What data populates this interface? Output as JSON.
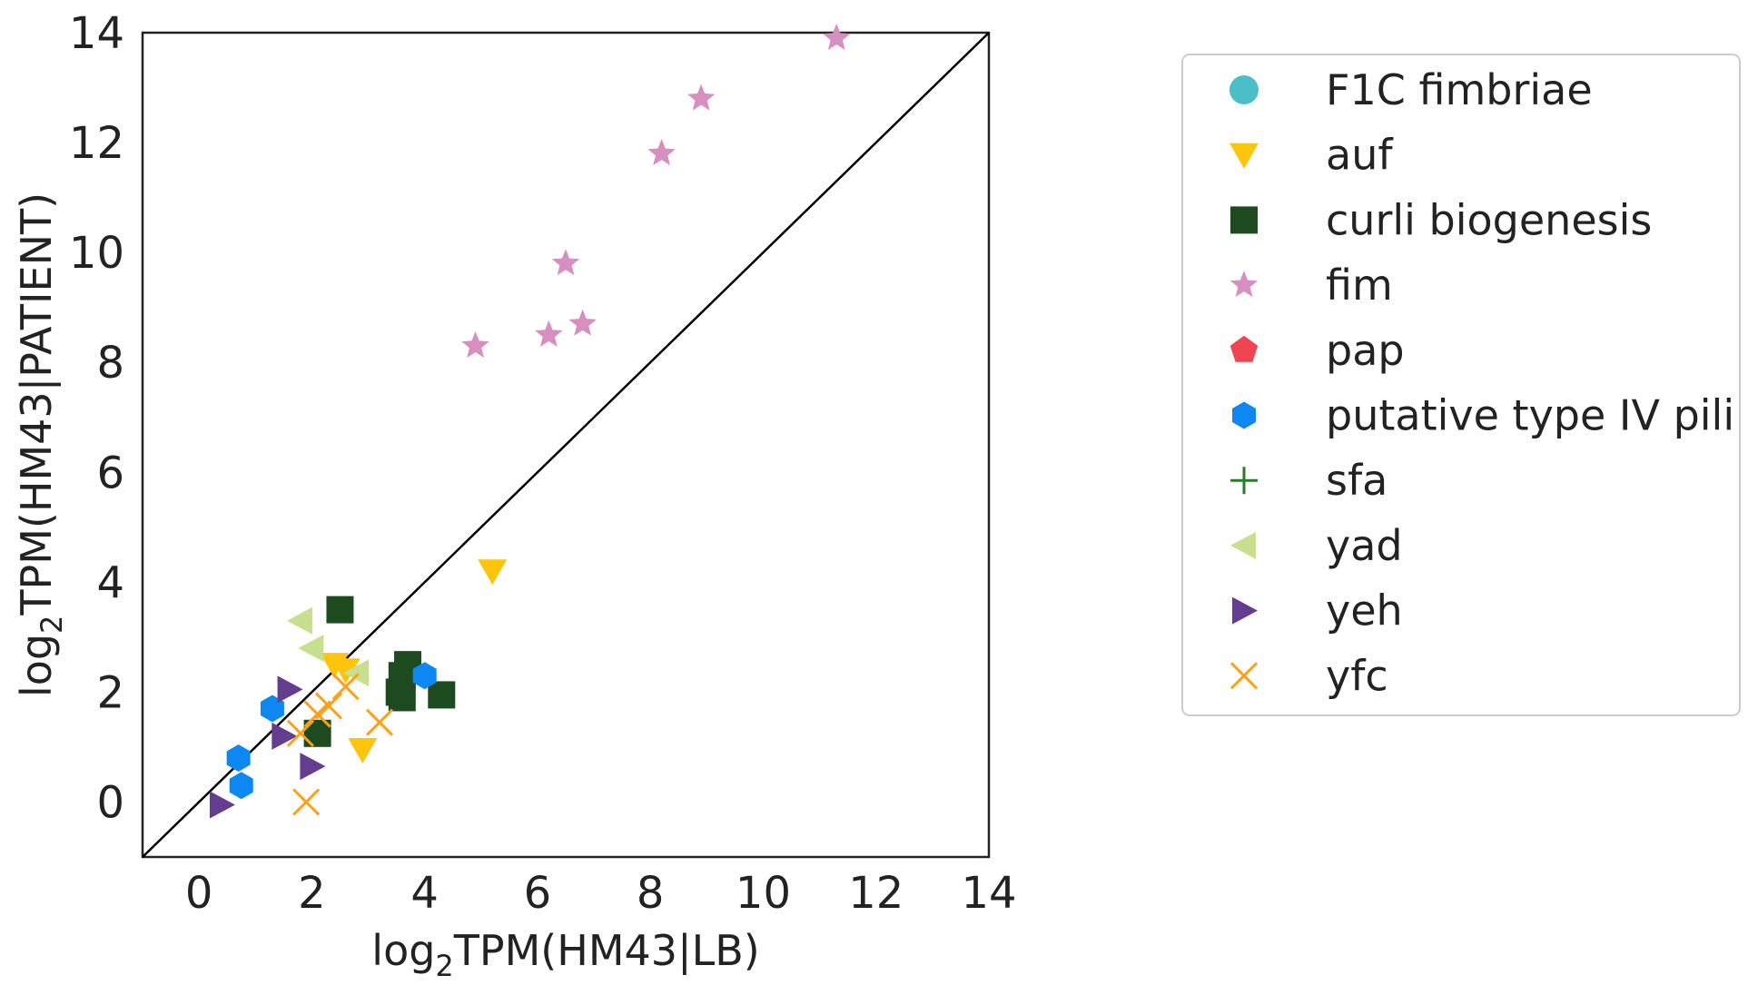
{
  "chart_data": {
    "type": "scatter",
    "xlabel": {
      "prefix": "log",
      "sub": "2",
      "rest": "TPM(HM43|LB)"
    },
    "ylabel": {
      "prefix": "log",
      "sub": "2",
      "rest": "TPM(HM43|PATIENT)"
    },
    "xlim": [
      -1,
      14
    ],
    "ylim": [
      -1,
      14
    ],
    "xticks": [
      0,
      2,
      4,
      6,
      8,
      10,
      12,
      14
    ],
    "yticks": [
      0,
      2,
      4,
      6,
      8,
      10,
      12,
      14
    ],
    "grid": false,
    "diagonal_line": {
      "from": [
        -1,
        -1
      ],
      "to": [
        14,
        14
      ],
      "color": "#000000"
    },
    "legend_position": "outside-right",
    "series": [
      {
        "name": "F1C fimbriae",
        "marker": "circle",
        "color": "#4bbfc8",
        "points": []
      },
      {
        "name": "auf",
        "marker": "triangle-down",
        "color": "#ffc40c",
        "points": [
          [
            5.2,
            4.2
          ],
          [
            2.4,
            2.5
          ],
          [
            2.6,
            2.4
          ],
          [
            2.9,
            0.95
          ]
        ]
      },
      {
        "name": "curli biogenesis",
        "marker": "square",
        "color": "#1e4a20",
        "points": [
          [
            2.5,
            3.5
          ],
          [
            3.7,
            2.5
          ],
          [
            3.6,
            2.3
          ],
          [
            4.3,
            1.95
          ],
          [
            3.6,
            1.9
          ],
          [
            3.55,
            2.0
          ],
          [
            2.1,
            1.25
          ]
        ]
      },
      {
        "name": "fim",
        "marker": "star",
        "color": "#d68fbe",
        "points": [
          [
            11.3,
            13.9
          ],
          [
            8.9,
            12.8
          ],
          [
            8.2,
            11.8
          ],
          [
            6.5,
            9.8
          ],
          [
            4.9,
            8.3
          ],
          [
            6.8,
            8.7
          ],
          [
            6.2,
            8.5
          ]
        ]
      },
      {
        "name": "pap",
        "marker": "pentagon",
        "color": "#f04452",
        "points": []
      },
      {
        "name": "putative type IV pili",
        "marker": "hexagon",
        "color": "#0d87f2",
        "points": [
          [
            4.0,
            2.3
          ],
          [
            1.3,
            1.7
          ],
          [
            0.7,
            0.8
          ],
          [
            0.75,
            0.3
          ]
        ]
      },
      {
        "name": "sfa",
        "marker": "plus",
        "color": "#2a7b2a",
        "points": []
      },
      {
        "name": "yad",
        "marker": "triangle-left",
        "color": "#c9df90",
        "points": [
          [
            1.8,
            3.3
          ],
          [
            2.0,
            2.8
          ],
          [
            2.8,
            2.35
          ]
        ]
      },
      {
        "name": "yeh",
        "marker": "triangle-right",
        "color": "#643d91",
        "points": [
          [
            1.6,
            2.05
          ],
          [
            1.5,
            1.2
          ],
          [
            2.0,
            0.65
          ],
          [
            0.4,
            -0.05
          ]
        ]
      },
      {
        "name": "yfc",
        "marker": "x",
        "color": "#ffa11a",
        "points": [
          [
            2.6,
            2.1
          ],
          [
            2.3,
            1.75
          ],
          [
            2.1,
            1.6
          ],
          [
            3.2,
            1.45
          ],
          [
            1.8,
            1.25
          ],
          [
            1.9,
            0.0
          ]
        ]
      }
    ]
  }
}
